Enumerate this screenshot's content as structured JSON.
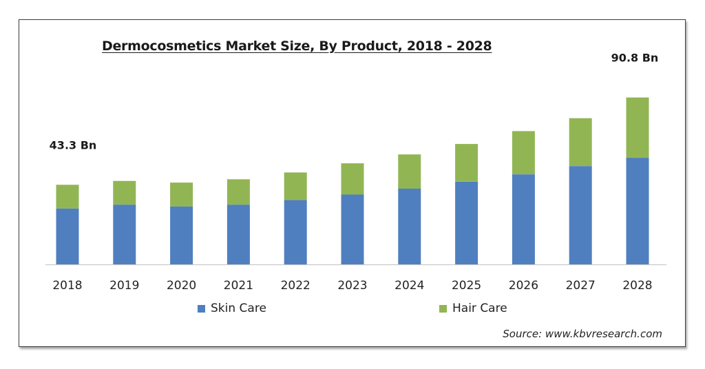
{
  "chart_data": {
    "type": "bar",
    "stacked": true,
    "title": "Dermocosmetics Market Size, By Product, 2018 - 2028",
    "categories": [
      "2018",
      "2019",
      "2020",
      "2021",
      "2022",
      "2023",
      "2024",
      "2025",
      "2026",
      "2027",
      "2028"
    ],
    "series": [
      {
        "name": "Skin Care",
        "color": "#4f7fbf",
        "values": [
          30.4,
          32.5,
          31.5,
          32.5,
          35.0,
          38.0,
          41.2,
          45.0,
          49.0,
          53.5,
          58.0
        ]
      },
      {
        "name": "Hair Care",
        "color": "#92b554",
        "values": [
          12.9,
          12.9,
          13.0,
          13.8,
          15.0,
          17.0,
          18.6,
          20.5,
          23.5,
          26.0,
          32.8
        ]
      }
    ],
    "annotations": [
      {
        "category": "2018",
        "text": "43.3 Bn"
      },
      {
        "category": "2028",
        "text": "90.8 Bn"
      }
    ],
    "ylim": [
      0,
      100
    ],
    "grid": false,
    "legend_position": "bottom"
  },
  "source_text": "Source:  www.kbvresearch.com"
}
